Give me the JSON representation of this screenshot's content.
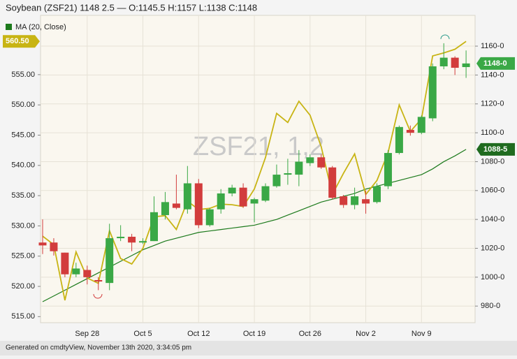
{
  "chart_data": {
    "type": "candlestick",
    "title": "Soybean (ZSF21) 1148 2.5 — O:1145.5 H:1157 L:1138 C:1148",
    "watermark": "ZSF21, 1,2",
    "footer": "Generated on cmdtyView, November 13th 2020, 3:34:05 pm",
    "categories": [
      null,
      null,
      null,
      null,
      "Sep 28",
      null,
      null,
      null,
      null,
      "Oct 5",
      null,
      null,
      null,
      null,
      "Oct 12",
      null,
      null,
      null,
      null,
      "Oct 19",
      null,
      null,
      null,
      null,
      "Oct 26",
      null,
      null,
      null,
      null,
      "Nov 2",
      null,
      null,
      null,
      null,
      "Nov 9",
      null,
      null,
      null,
      null
    ],
    "open": [
      1024,
      1024,
      1017,
      1002,
      1005,
      998,
      996,
      1027,
      1028,
      1024,
      1025,
      1043,
      1051,
      1047,
      1065,
      1036,
      1047,
      1058,
      1062,
      1051,
      1053,
      1063,
      1071,
      1071,
      1079,
      1083,
      1076,
      1056,
      1050,
      1054,
      1052,
      1063,
      1086,
      1102,
      1100,
      1110,
      1146,
      1152,
      1145.5
    ],
    "high": [
      1040,
      1027,
      1017,
      1010,
      1008,
      1000,
      1037,
      1036,
      1030,
      1027,
      1056,
      1059,
      1071,
      1077,
      1068,
      1048,
      1061,
      1064,
      1065,
      1055,
      1065,
      1078,
      1082,
      1088,
      1085,
      1085,
      1077,
      1057,
      1062,
      1060,
      1065,
      1088,
      1105,
      1105,
      1112,
      1148,
      1162,
      1153,
      1157
    ],
    "low": [
      1016,
      1015,
      1000,
      1000,
      995,
      991,
      991,
      1025,
      1018,
      1023,
      1025,
      1040,
      1047,
      1044,
      1034,
      1035,
      1044,
      1056,
      1048,
      1038,
      1052,
      1062,
      1064,
      1063,
      1077,
      1075,
      1054,
      1048,
      1047,
      1044,
      1051,
      1061,
      1085,
      1098,
      1099,
      1108,
      1144,
      1140,
      1138
    ],
    "close": [
      1022,
      1018,
      1002,
      1006,
      1000,
      997,
      1027,
      1028,
      1024,
      1025,
      1045,
      1052,
      1048,
      1065,
      1036,
      1047,
      1058,
      1062,
      1049,
      1054,
      1063,
      1071,
      1072,
      1080,
      1083,
      1076,
      1055,
      1050,
      1056,
      1051,
      1063,
      1086,
      1104,
      1100,
      1111,
      1146,
      1152,
      1145,
      1148
    ],
    "up_color": "#3aa846",
    "down_color": "#d23c3c",
    "series": [
      {
        "name": "MA (20, Close)",
        "color": "#1c7a1c",
        "axis": "y2",
        "values": [
          983,
          987,
          991,
          995,
          999,
          1003,
          1007,
          1011,
          1015,
          1019,
          1022,
          1025,
          1027,
          1029,
          1031,
          1032,
          1033,
          1034,
          1035,
          1036,
          1038,
          1040,
          1043,
          1046,
          1049,
          1052,
          1054,
          1056,
          1058,
          1061,
          1063,
          1065,
          1067,
          1069,
          1071,
          1075,
          1080,
          1084,
          1088.5
        ]
      },
      {
        "color": "#c8b414",
        "axis": "y",
        "values": [
          528.3,
          526.9,
          517.7,
          525.7,
          521.4,
          520.5,
          529.2,
          524.6,
          523.7,
          526.3,
          531.5,
          531.7,
          529.4,
          534.1,
          532.7,
          532.9,
          533.6,
          533.5,
          533.2,
          536.1,
          541.3,
          548.6,
          547.1,
          550.6,
          548.3,
          543.1,
          535.2,
          538.7,
          541.9,
          535.2,
          537.5,
          542.1,
          550,
          545.6,
          547.7,
          558.1,
          558.6,
          559.2,
          560.5
        ]
      }
    ],
    "ylim": [
      514,
      564.8
    ],
    "yticks": [
      {
        "value": 515,
        "label": "515.00"
      },
      {
        "value": 520,
        "label": "520.00"
      },
      {
        "value": 525,
        "label": "525.00"
      },
      {
        "value": 530,
        "label": "530.00"
      },
      {
        "value": 535,
        "label": "535.00"
      },
      {
        "value": 540,
        "label": "540.00"
      },
      {
        "value": 545,
        "label": "545.00"
      },
      {
        "value": 550,
        "label": "550.00"
      },
      {
        "value": 555,
        "label": "555.00"
      }
    ],
    "y2lim": [
      968.5,
      1181.3
    ],
    "y2ticks": [
      {
        "value": 980,
        "label": "980-0"
      },
      {
        "value": 1000,
        "label": "1000-0"
      },
      {
        "value": 1020,
        "label": "1020-0"
      },
      {
        "value": 1040,
        "label": "1040-0"
      },
      {
        "value": 1060,
        "label": "1060-0"
      },
      {
        "value": 1080,
        "label": "1080-0"
      },
      {
        "value": 1100,
        "label": "1100-0"
      },
      {
        "value": 1120,
        "label": "1120-0"
      },
      {
        "value": 1140,
        "label": "1140-0"
      },
      {
        "value": 1160,
        "label": "1160-0"
      }
    ],
    "badges": [
      {
        "value": 560.5,
        "label": "560.50",
        "axis": "y",
        "color": "#c8b414"
      },
      {
        "value": 1148,
        "label": "1148-0",
        "axis": "y2",
        "color": "#3aa846"
      },
      {
        "value": 1088.5,
        "label": "1088-5",
        "axis": "y2",
        "color": "#1f6b1f"
      }
    ],
    "grid": true
  }
}
